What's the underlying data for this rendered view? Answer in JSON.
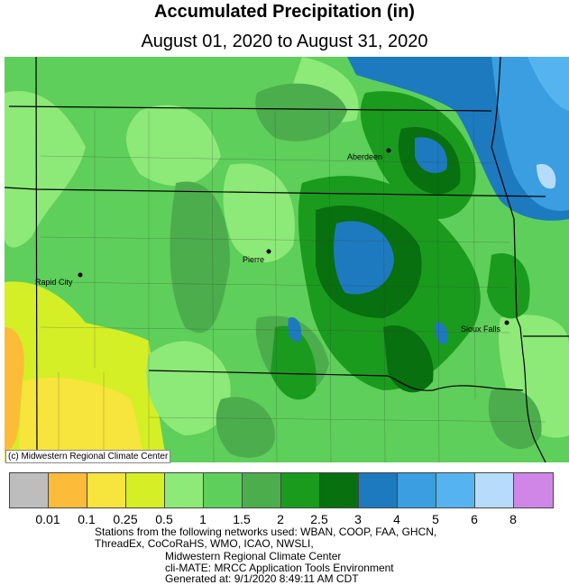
{
  "title": "Accumulated Precipitation (in)",
  "subtitle": "August 01, 2020 to August 31, 2020",
  "credit": "(c) Midwestern Regional Climate Center",
  "cities": [
    {
      "name": "Aberdeen"
    },
    {
      "name": "Pierre"
    },
    {
      "name": "Rapid City"
    },
    {
      "name": "Sioux Falls"
    }
  ],
  "legend": {
    "colors": [
      "#bdbdbd",
      "#fdbb3a",
      "#f7e43c",
      "#d4ef25",
      "#8de978",
      "#5ecf5a",
      "#4cad4d",
      "#1a9b1e",
      "#08700f",
      "#1d7abf",
      "#3a9ee0",
      "#55b4f0",
      "#b7dcfb",
      "#cf86e6"
    ],
    "labels": [
      "0.01",
      "0.1",
      "0.25",
      "0.5",
      "1",
      "1.5",
      "2",
      "2.5",
      "3",
      "4",
      "5",
      "6",
      "8"
    ]
  },
  "footer": {
    "line1": "Stations from the following networks used: WBAN, COOP, FAA, GHCN,",
    "line2": "ThreadEx, CoCoRaHS, WMO, ICAO, NWSLI,",
    "line3": "Midwestern Regional Climate Center",
    "line4": "cli-MATE: MRCC Application Tools Environment",
    "line5": "Generated at: 9/1/2020 8:49:11 AM CDT"
  }
}
